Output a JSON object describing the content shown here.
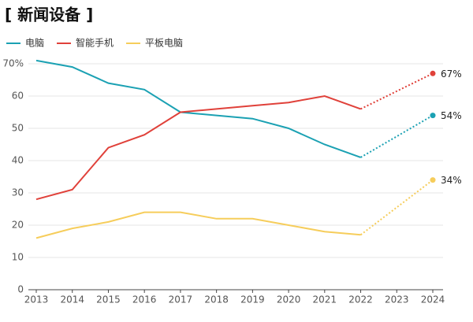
{
  "chart_data": {
    "type": "line",
    "title": "[ 新闻设备 ]",
    "x": [
      2013,
      2014,
      2015,
      2016,
      2017,
      2018,
      2019,
      2020,
      2021,
      2022,
      2023,
      2024
    ],
    "series": [
      {
        "name": "电脑",
        "color": "#1ba1b3",
        "values": [
          71,
          69,
          64,
          62,
          55,
          54,
          53,
          50,
          45,
          41,
          null,
          54
        ],
        "value_labels": [
          null,
          null,
          null,
          null,
          null,
          null,
          null,
          null,
          null,
          null,
          null,
          "54%"
        ]
      },
      {
        "name": "智能手机",
        "color": "#e0413a",
        "values": [
          28,
          31,
          44,
          48,
          55,
          56,
          57,
          58,
          60,
          56,
          null,
          67
        ],
        "value_labels": [
          null,
          null,
          null,
          null,
          null,
          null,
          null,
          null,
          null,
          null,
          null,
          "67%"
        ]
      },
      {
        "name": "平板电脑",
        "color": "#f6cd5b",
        "values": [
          16,
          19,
          21,
          24,
          24,
          22,
          22,
          20,
          18,
          17,
          null,
          34
        ],
        "value_labels": [
          null,
          null,
          null,
          null,
          null,
          null,
          null,
          null,
          null,
          null,
          null,
          "34%"
        ]
      }
    ],
    "xlim": [
      2013,
      2024
    ],
    "xticks": [
      2013,
      2014,
      2015,
      2016,
      2017,
      2018,
      2019,
      2020,
      2021,
      2022,
      2023,
      2024
    ],
    "ylim": [
      0,
      72
    ],
    "yticks": [
      0,
      10,
      20,
      30,
      40,
      50,
      60,
      {
        "value": 70,
        "label": "70%"
      }
    ],
    "grid": true,
    "legend": "top-left"
  }
}
